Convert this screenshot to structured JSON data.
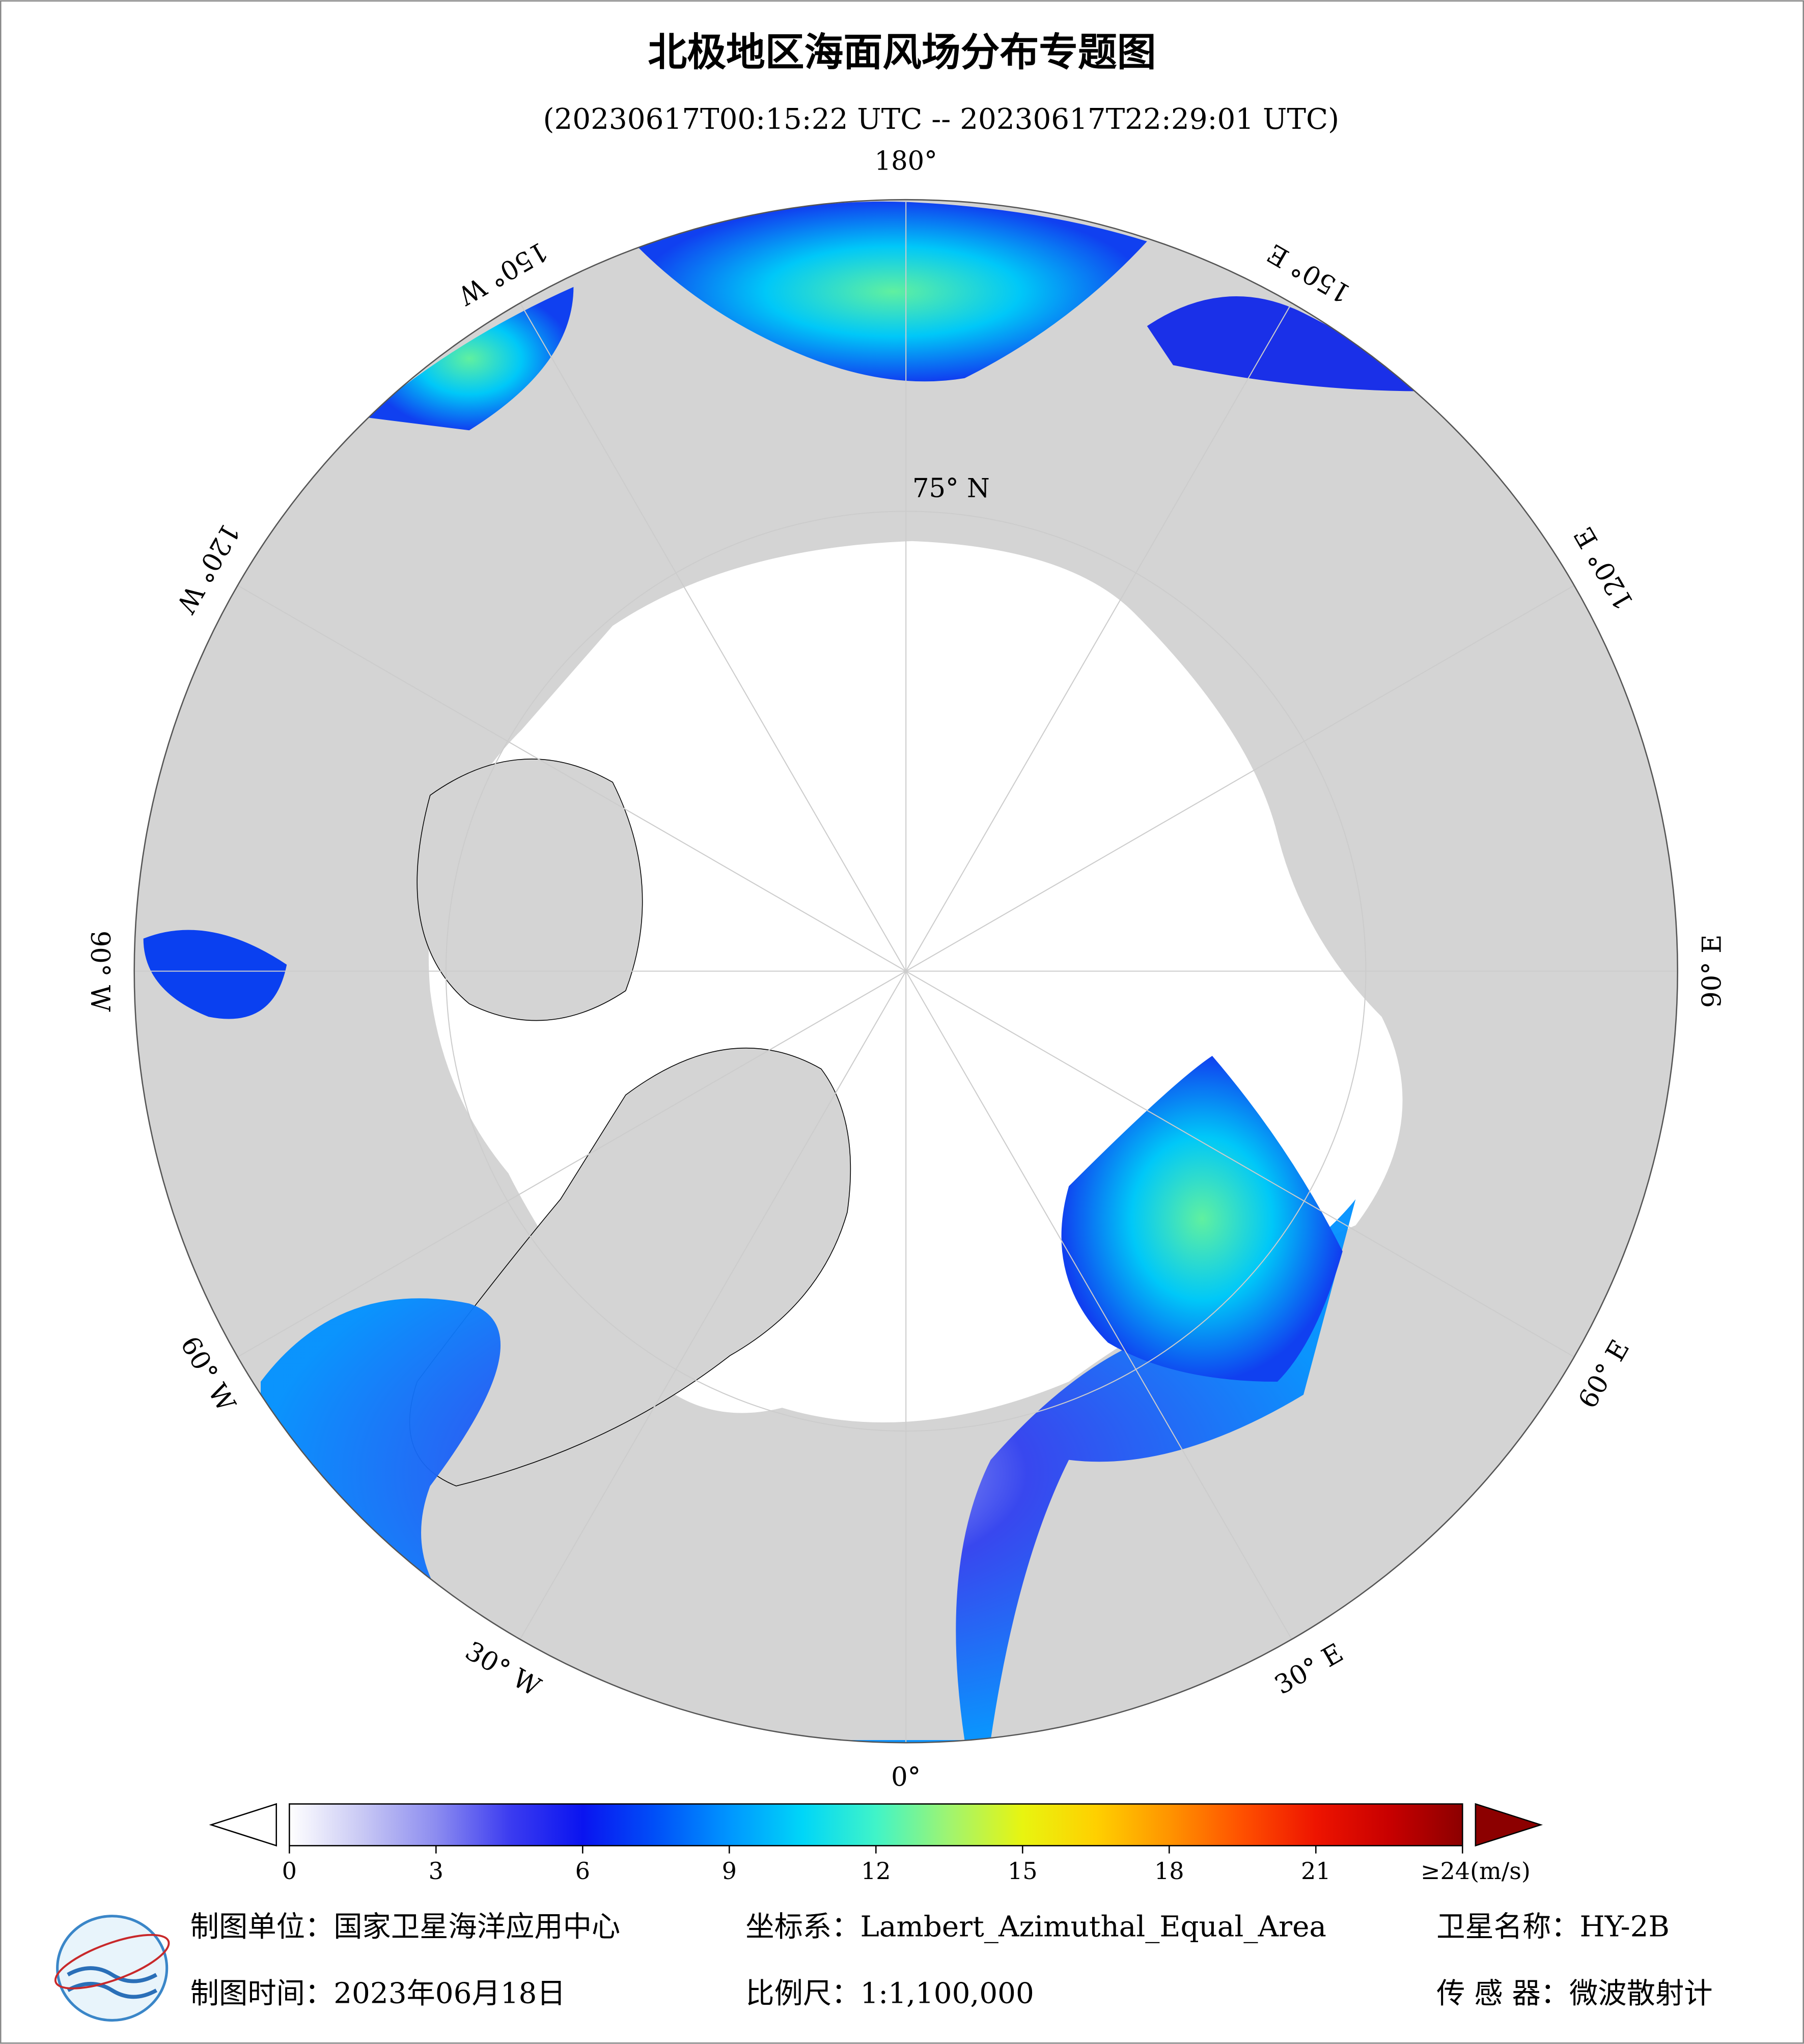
{
  "header": {
    "title": "北极地区海面风场分布专题图",
    "subtitle": "(20230617T00:15:22 UTC -- 20230617T22:29:01 UTC)"
  },
  "map": {
    "meridians": [
      {
        "value": 180,
        "label": "180°"
      },
      {
        "value": 150,
        "label": "150° E"
      },
      {
        "value": 120,
        "label": "120° E"
      },
      {
        "value": 90,
        "label": "90° E"
      },
      {
        "value": 60,
        "label": "60° E"
      },
      {
        "value": 30,
        "label": "30° E"
      },
      {
        "value": 0,
        "label": "0°"
      },
      {
        "value": -30,
        "label": "30° W"
      },
      {
        "value": -60,
        "label": "60° W"
      },
      {
        "value": -90,
        "label": "90° W"
      },
      {
        "value": -120,
        "label": "120° W"
      },
      {
        "value": -150,
        "label": "150° W"
      }
    ],
    "parallel": {
      "value": 75,
      "label": "75° N"
    }
  },
  "colorbar": {
    "ticks": [
      0,
      3,
      6,
      9,
      12,
      15,
      18,
      21,
      {
        "value": 24,
        "label": "≥24(m/s)"
      }
    ],
    "colors": [
      "#ffffff",
      "#c8c8f4",
      "#8c8cf0",
      "#3c3cf0",
      "#0a14f0",
      "#0050f8",
      "#0096ff",
      "#00d6f8",
      "#40f4c8",
      "#a0f470",
      "#e8f410",
      "#ffd000",
      "#ff9400",
      "#ff5000",
      "#ee1400",
      "#c80000",
      "#8c0000"
    ]
  },
  "footer": {
    "unit": "制图单位：国家卫星海洋应用中心",
    "crs": "坐标系：Lambert_Azimuthal_Equal_Area",
    "satellite": "卫星名称：HY-2B",
    "date": "制图时间：2023年06月18日",
    "scale": "比例尺：1:1,100,000",
    "sensor": "传 感 器：微波散射计"
  }
}
